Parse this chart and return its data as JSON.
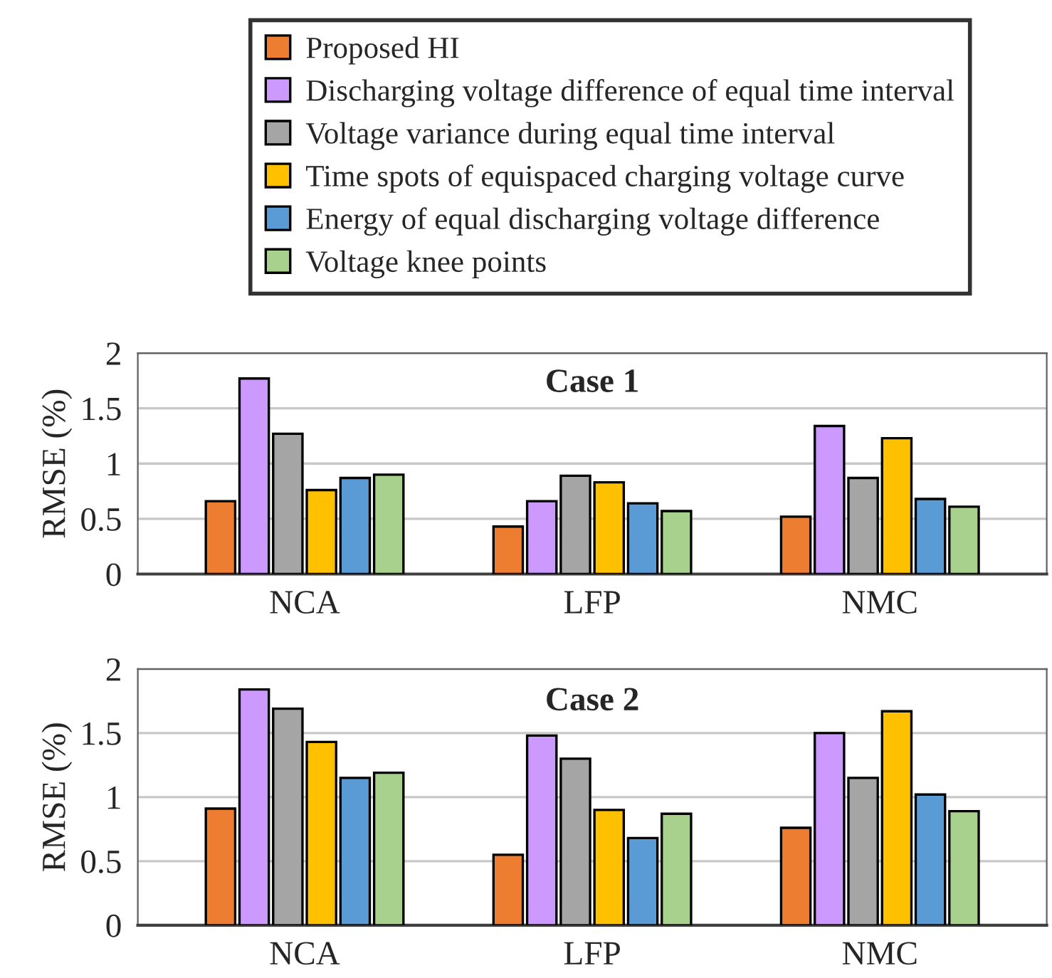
{
  "chart_data": [
    {
      "type": "bar",
      "title": "Case 1",
      "ylabel": "RMSE (%)",
      "categories": [
        "NCA",
        "LFP",
        "NMC"
      ],
      "ylim": [
        0,
        2
      ],
      "yticks": [
        0,
        0.5,
        1,
        1.5,
        2
      ],
      "grid": "y",
      "legend": "top",
      "series": [
        {
          "name": "Proposed HI",
          "color": "#ed7d31",
          "values": [
            0.66,
            0.43,
            0.52
          ]
        },
        {
          "name": "Discharging voltage difference of equal time interval",
          "color": "#cc99ff",
          "values": [
            1.77,
            0.66,
            1.34
          ]
        },
        {
          "name": "Voltage variance during equal time interval",
          "color": "#a5a5a5",
          "values": [
            1.27,
            0.89,
            0.87
          ]
        },
        {
          "name": "Time spots of equispaced charging voltage curve",
          "color": "#ffc000",
          "values": [
            0.76,
            0.83,
            1.23
          ]
        },
        {
          "name": "Energy of equal discharging voltage difference",
          "color": "#5b9bd5",
          "values": [
            0.87,
            0.64,
            0.68
          ]
        },
        {
          "name": "Voltage knee points",
          "color": "#a9d18e",
          "values": [
            0.9,
            0.57,
            0.61
          ]
        }
      ]
    },
    {
      "type": "bar",
      "title": "Case 2",
      "ylabel": "RMSE (%)",
      "categories": [
        "NCA",
        "LFP",
        "NMC"
      ],
      "ylim": [
        0,
        2
      ],
      "yticks": [
        0,
        0.5,
        1,
        1.5,
        2
      ],
      "grid": "y",
      "series": [
        {
          "color": "#ed7d31",
          "values": [
            0.91,
            0.55,
            0.76
          ]
        },
        {
          "color": "#cc99ff",
          "values": [
            1.84,
            1.48,
            1.5
          ]
        },
        {
          "color": "#a5a5a5",
          "values": [
            1.69,
            1.3,
            1.15
          ]
        },
        {
          "color": "#ffc000",
          "values": [
            1.43,
            0.9,
            1.67
          ]
        },
        {
          "color": "#5b9bd5",
          "values": [
            1.15,
            0.68,
            1.02
          ]
        },
        {
          "color": "#a9d18e",
          "values": [
            1.19,
            0.87,
            0.89
          ]
        }
      ]
    }
  ]
}
